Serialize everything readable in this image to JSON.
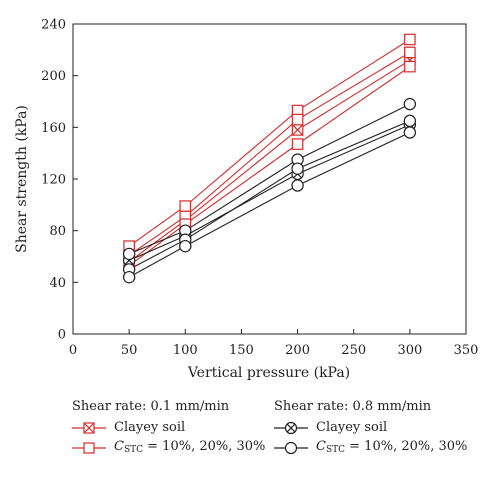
{
  "chart_data": {
    "type": "line",
    "xlabel": "Vertical pressure (kPa)",
    "ylabel": "Shear strength (kPa)",
    "xlim": [
      0,
      350
    ],
    "ylim": [
      0,
      240
    ],
    "xticks": [
      "0",
      "50",
      "100",
      "150",
      "200",
      "250",
      "300",
      "350"
    ],
    "yticks": [
      "0",
      "40",
      "80",
      "120",
      "160",
      "200",
      "240"
    ],
    "x": [
      50,
      100,
      200,
      300
    ],
    "grid": false,
    "series": [
      {
        "group": "rate_0_1",
        "marker": "boxcross",
        "color": "#d42a2a",
        "values": [
          56,
          88,
          158,
          212
        ]
      },
      {
        "group": "rate_0_1",
        "marker": "square",
        "color": "#d42a2a",
        "values": [
          68,
          99,
          173,
          228
        ]
      },
      {
        "group": "rate_0_1",
        "marker": "square",
        "color": "#d42a2a",
        "values": [
          61,
          91,
          166,
          218
        ]
      },
      {
        "group": "rate_0_1",
        "marker": "square",
        "color": "#d42a2a",
        "values": [
          53,
          85,
          147,
          207
        ]
      },
      {
        "group": "rate_0_8",
        "marker": "circlecross",
        "color": "#222222",
        "values": [
          57,
          76,
          124,
          162
        ]
      },
      {
        "group": "rate_0_8",
        "marker": "circle",
        "color": "#222222",
        "values": [
          62,
          80,
          135,
          178
        ]
      },
      {
        "group": "rate_0_8",
        "marker": "circle",
        "color": "#222222",
        "values": [
          50,
          73,
          128,
          165
        ]
      },
      {
        "group": "rate_0_8",
        "marker": "circle",
        "color": "#222222",
        "values": [
          44,
          68,
          115,
          156
        ]
      }
    ]
  },
  "legend": {
    "left": {
      "heading": "Shear rate: 0.1 mm/min",
      "item1": "Clayey soil",
      "item2_prefix": "C",
      "item2_sub": "STC",
      "item2_suffix": " = 10%, 20%, 30%"
    },
    "right": {
      "heading": "Shear rate: 0.8 mm/min",
      "item1": "Clayey soil",
      "item2_prefix": "C",
      "item2_sub": "STC",
      "item2_suffix": " = 10%, 20%, 30%"
    }
  },
  "colors": {
    "red": "#d42a2a",
    "black": "#222222"
  }
}
